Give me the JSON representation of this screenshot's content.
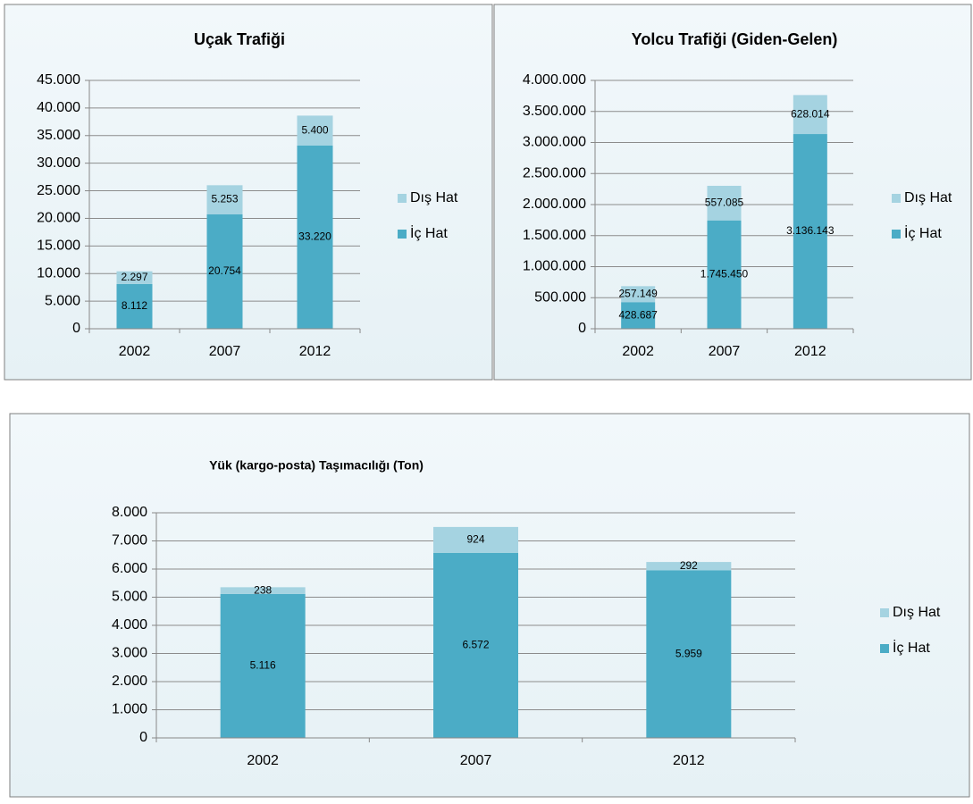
{
  "chart_data": [
    {
      "type": "bar",
      "stacked": true,
      "title": "Uçak Trafiği",
      "categories": [
        "2002",
        "2007",
        "2012"
      ],
      "series": [
        {
          "name": "İç Hat",
          "color": "#4bacc6",
          "values": [
            8112,
            20754,
            33220
          ],
          "value_labels": [
            "8.112",
            "20.754",
            "33.220"
          ]
        },
        {
          "name": "Dış Hat",
          "color": "#a5d3e1",
          "values": [
            2297,
            5253,
            5400
          ],
          "value_labels": [
            "2.297",
            "5.253",
            "5.400"
          ]
        }
      ],
      "ylim": [
        0,
        45000
      ],
      "yticks": [
        0,
        {
          "value": 5000,
          "label": "5.000"
        },
        {
          "value": 10000,
          "label": "10.000"
        },
        {
          "value": 15000,
          "label": "15.000"
        },
        {
          "value": 20000,
          "label": "20.000"
        },
        {
          "value": 25000,
          "label": "25.000"
        },
        {
          "value": 30000,
          "label": "30.000"
        },
        {
          "value": 35000,
          "label": "35.000"
        },
        {
          "value": 40000,
          "label": "40.000"
        },
        {
          "value": 45000,
          "label": "45.000"
        }
      ],
      "grid": true,
      "legend": "right"
    },
    {
      "type": "bar",
      "stacked": true,
      "title": "Yolcu Trafiği (Giden-Gelen)",
      "categories": [
        "2002",
        "2007",
        "2012"
      ],
      "series": [
        {
          "name": "İç Hat",
          "color": "#4bacc6",
          "values": [
            428687,
            1745450,
            3136143
          ],
          "value_labels": [
            "428.687",
            "1.745.450",
            "3.136.143"
          ]
        },
        {
          "name": "Dış Hat",
          "color": "#a5d3e1",
          "values": [
            257149,
            557085,
            628014
          ],
          "value_labels": [
            "257.149",
            "557.085",
            "628.014"
          ]
        }
      ],
      "ylim": [
        0,
        4000000
      ],
      "yticks": [
        0,
        {
          "value": 500000,
          "label": "500.000"
        },
        {
          "value": 1000000,
          "label": "1.000.000"
        },
        {
          "value": 1500000,
          "label": "1.500.000"
        },
        {
          "value": 2000000,
          "label": "2.000.000"
        },
        {
          "value": 2500000,
          "label": "2.500.000"
        },
        {
          "value": 3000000,
          "label": "3.000.000"
        },
        {
          "value": 3500000,
          "label": "3.500.000"
        },
        {
          "value": 4000000,
          "label": "4.000.000"
        }
      ],
      "grid": true,
      "legend": "right"
    },
    {
      "type": "bar",
      "stacked": true,
      "title": "Yük (kargo-posta) Taşımacılığı (Ton)",
      "categories": [
        "2002",
        "2007",
        "2012"
      ],
      "series": [
        {
          "name": "İç Hat",
          "color": "#4bacc6",
          "values": [
            5116,
            6572,
            5959
          ],
          "value_labels": [
            "5.116",
            "6.572",
            "5.959"
          ]
        },
        {
          "name": "Dış Hat",
          "color": "#a5d3e1",
          "values": [
            238,
            924,
            292
          ]
        }
      ],
      "ylim": [
        0,
        8000
      ],
      "yticks": [
        0,
        {
          "value": 1000,
          "label": "1.000"
        },
        {
          "value": 2000,
          "label": "2.000"
        },
        {
          "value": 3000,
          "label": "3.000"
        },
        {
          "value": 4000,
          "label": "4.000"
        },
        {
          "value": 5000,
          "label": "5.000"
        },
        {
          "value": 6000,
          "label": "6.000"
        },
        {
          "value": 7000,
          "label": "7.000"
        },
        {
          "value": 8000,
          "label": "8.000"
        }
      ],
      "grid": true,
      "legend": "right"
    }
  ]
}
